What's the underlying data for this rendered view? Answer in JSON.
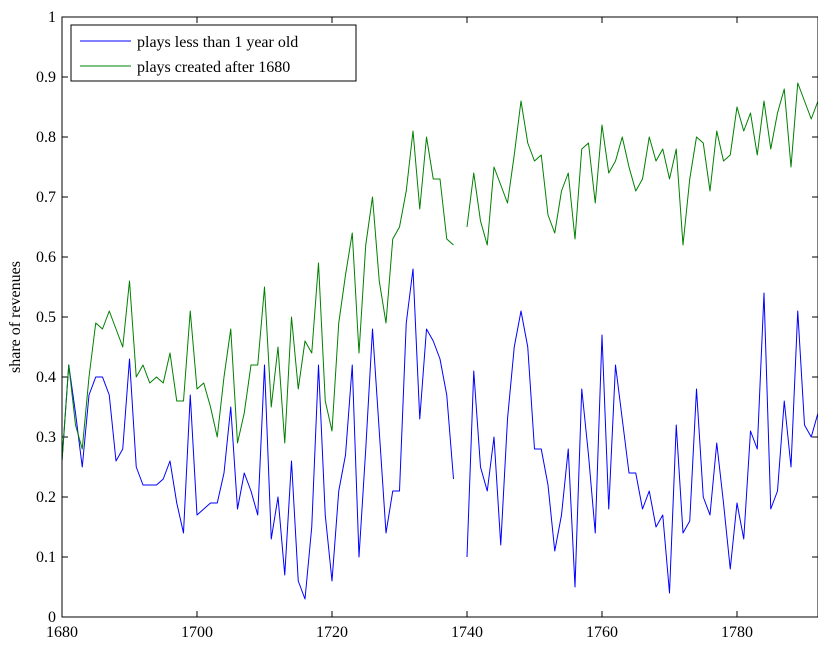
{
  "chart_data": {
    "type": "line",
    "title": "",
    "xlabel": "",
    "ylabel": "share of revenues",
    "xlim": [
      1680,
      1792
    ],
    "ylim": [
      0,
      1
    ],
    "xticks": [
      "1680",
      "1700",
      "1720",
      "1740",
      "1760",
      "1780"
    ],
    "yticks": [
      "0",
      "0.1",
      "0.2",
      "0.3",
      "0.4",
      "0.5",
      "0.6",
      "0.7",
      "0.8",
      "0.9",
      "1"
    ],
    "grid": false,
    "legend_position": "top-left",
    "series": [
      {
        "name": "plays less than 1 year old",
        "color": "#0000ff",
        "x": [
          1680,
          1681,
          1682,
          1683,
          1684,
          1685,
          1686,
          1687,
          1688,
          1689,
          1690,
          1691,
          1692,
          1693,
          1694,
          1695,
          1696,
          1697,
          1698,
          1699,
          1700,
          1701,
          1702,
          1703,
          1704,
          1705,
          1706,
          1707,
          1708,
          1709,
          1710,
          1711,
          1712,
          1713,
          1714,
          1715,
          1716,
          1717,
          1718,
          1719,
          1720,
          1721,
          1722,
          1723,
          1724,
          1725,
          1726,
          1727,
          1728,
          1729,
          1730,
          1731,
          1732,
          1733,
          1734,
          1735,
          1736,
          1737,
          1738,
          1739,
          1740,
          1741,
          1742,
          1743,
          1744,
          1745,
          1746,
          1747,
          1748,
          1749,
          1750,
          1751,
          1752,
          1753,
          1754,
          1755,
          1756,
          1757,
          1758,
          1759,
          1760,
          1761,
          1762,
          1763,
          1764,
          1765,
          1766,
          1767,
          1768,
          1769,
          1770,
          1771,
          1772,
          1773,
          1774,
          1775,
          1776,
          1777,
          1778,
          1779,
          1780,
          1781,
          1782,
          1783,
          1784,
          1785,
          1786,
          1787,
          1788,
          1789,
          1790,
          1791,
          1792
        ],
        "y": [
          0.26,
          0.42,
          0.34,
          0.25,
          0.37,
          0.4,
          0.4,
          0.37,
          0.26,
          0.28,
          0.43,
          0.25,
          0.22,
          0.22,
          0.22,
          0.23,
          0.26,
          0.19,
          0.14,
          0.37,
          0.17,
          0.18,
          0.19,
          0.19,
          0.24,
          0.35,
          0.18,
          0.24,
          0.21,
          0.17,
          0.42,
          0.13,
          0.2,
          0.07,
          0.26,
          0.06,
          0.03,
          0.15,
          0.42,
          0.17,
          0.06,
          0.21,
          0.27,
          0.42,
          0.1,
          0.28,
          0.48,
          0.31,
          0.14,
          0.21,
          0.21,
          0.49,
          0.58,
          0.33,
          0.48,
          0.46,
          0.43,
          0.37,
          0.23,
          null,
          0.1,
          0.41,
          0.25,
          0.21,
          0.3,
          0.12,
          0.33,
          0.45,
          0.51,
          0.45,
          0.28,
          0.28,
          0.22,
          0.11,
          0.17,
          0.28,
          0.05,
          0.38,
          0.27,
          0.14,
          0.47,
          0.18,
          0.42,
          0.33,
          0.24,
          0.24,
          0.18,
          0.21,
          0.15,
          0.17,
          0.04,
          0.32,
          0.14,
          0.16,
          0.38,
          0.2,
          0.17,
          0.29,
          0.19,
          0.08,
          0.19,
          0.13,
          0.31,
          0.28,
          0.54,
          0.18,
          0.21,
          0.36,
          0.25,
          0.51,
          0.32,
          0.3,
          0.34
        ]
      },
      {
        "name": "plays created after 1680",
        "color": "#008000",
        "x": [
          1680,
          1681,
          1682,
          1683,
          1684,
          1685,
          1686,
          1687,
          1688,
          1689,
          1690,
          1691,
          1692,
          1693,
          1694,
          1695,
          1696,
          1697,
          1698,
          1699,
          1700,
          1701,
          1702,
          1703,
          1704,
          1705,
          1706,
          1707,
          1708,
          1709,
          1710,
          1711,
          1712,
          1713,
          1714,
          1715,
          1716,
          1717,
          1718,
          1719,
          1720,
          1721,
          1722,
          1723,
          1724,
          1725,
          1726,
          1727,
          1728,
          1729,
          1730,
          1731,
          1732,
          1733,
          1734,
          1735,
          1736,
          1737,
          1738,
          1739,
          1740,
          1741,
          1742,
          1743,
          1744,
          1745,
          1746,
          1747,
          1748,
          1749,
          1750,
          1751,
          1752,
          1753,
          1754,
          1755,
          1756,
          1757,
          1758,
          1759,
          1760,
          1761,
          1762,
          1763,
          1764,
          1765,
          1766,
          1767,
          1768,
          1769,
          1770,
          1771,
          1772,
          1773,
          1774,
          1775,
          1776,
          1777,
          1778,
          1779,
          1780,
          1781,
          1782,
          1783,
          1784,
          1785,
          1786,
          1787,
          1788,
          1789,
          1790,
          1791,
          1792
        ],
        "y": [
          0.26,
          0.42,
          0.32,
          0.28,
          0.4,
          0.49,
          0.48,
          0.51,
          0.48,
          0.45,
          0.56,
          0.4,
          0.42,
          0.39,
          0.4,
          0.39,
          0.44,
          0.36,
          0.36,
          0.51,
          0.38,
          0.39,
          0.35,
          0.3,
          0.4,
          0.48,
          0.29,
          0.34,
          0.42,
          0.42,
          0.55,
          0.35,
          0.45,
          0.29,
          0.5,
          0.38,
          0.46,
          0.44,
          0.59,
          0.36,
          0.31,
          0.49,
          0.57,
          0.64,
          0.44,
          0.62,
          0.7,
          0.56,
          0.49,
          0.63,
          0.65,
          0.71,
          0.81,
          0.68,
          0.8,
          0.73,
          0.73,
          0.63,
          0.62,
          null,
          0.65,
          0.74,
          0.66,
          0.62,
          0.75,
          0.72,
          0.69,
          0.77,
          0.86,
          0.79,
          0.76,
          0.77,
          0.67,
          0.64,
          0.71,
          0.74,
          0.63,
          0.78,
          0.79,
          0.69,
          0.82,
          0.74,
          0.76,
          0.8,
          0.75,
          0.71,
          0.73,
          0.8,
          0.76,
          0.78,
          0.73,
          0.78,
          0.62,
          0.73,
          0.8,
          0.79,
          0.71,
          0.81,
          0.76,
          0.77,
          0.85,
          0.81,
          0.84,
          0.77,
          0.86,
          0.78,
          0.84,
          0.88,
          0.75,
          0.89,
          0.86,
          0.83,
          0.86
        ]
      }
    ]
  }
}
